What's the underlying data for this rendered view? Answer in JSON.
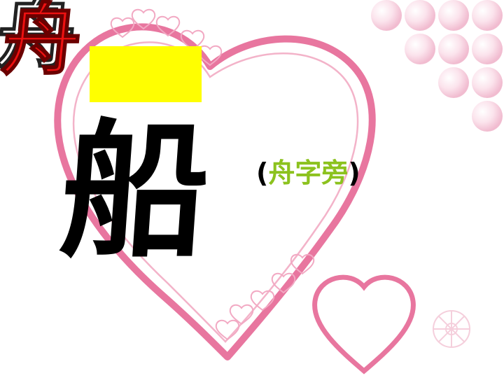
{
  "slide": {
    "title_char": "舟",
    "main_char": "船",
    "hint": {
      "open_paren": "(",
      "text": "舟字旁",
      "close_paren": ")"
    }
  },
  "colors": {
    "title": "#ee1111",
    "highlight_box": "#ffff00",
    "hint_text": "#8cc21e",
    "heart": "#e8769f"
  }
}
